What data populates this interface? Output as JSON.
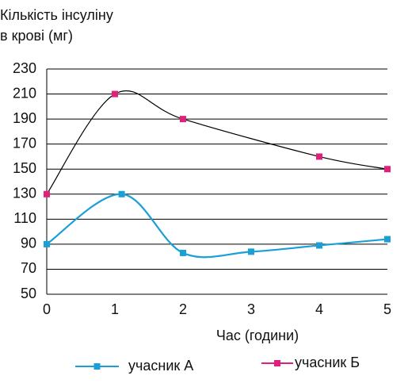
{
  "chart_data": {
    "type": "line",
    "ylabel": [
      "Кількість інсуліну",
      "в крові (мг)"
    ],
    "xlabel": "Час (години)",
    "xlim": [
      0,
      5
    ],
    "xticks": [
      0,
      1,
      2,
      3,
      4,
      5
    ],
    "ylim": [
      50,
      230
    ],
    "yticks": [
      50,
      70,
      90,
      110,
      130,
      150,
      170,
      190,
      210,
      230
    ],
    "grid": true,
    "legend": "bottom",
    "series": [
      {
        "name": "учасник А",
        "color": "#1a9fd6",
        "line_color": "#1a9fd6",
        "x": [
          0,
          1.1,
          2,
          3,
          4,
          5
        ],
        "values": [
          90,
          130,
          83,
          84,
          89,
          94
        ]
      },
      {
        "name": "учасник Б",
        "color": "#e0207a",
        "line_color": "#000000",
        "x": [
          0,
          1,
          2,
          4,
          5
        ],
        "values": [
          130,
          210,
          190,
          160,
          150
        ]
      }
    ]
  }
}
